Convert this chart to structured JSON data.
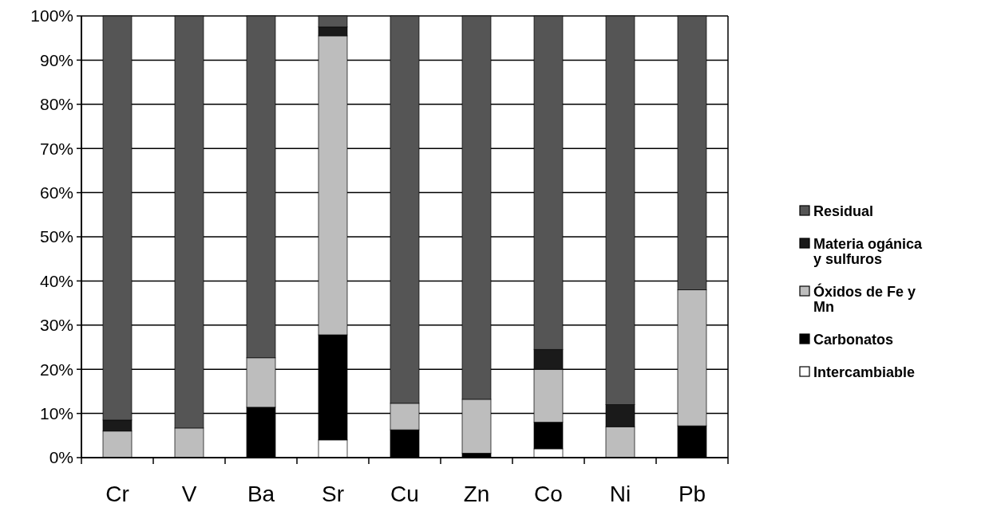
{
  "chart_data": {
    "type": "bar",
    "stacked": true,
    "categories": [
      "Cr",
      "V",
      "Ba",
      "Sr",
      "Cu",
      "Zn",
      "Co",
      "Ni",
      "Pb"
    ],
    "series": [
      {
        "name": "Intercambiable",
        "color": "#ffffff",
        "values": [
          null,
          0,
          0,
          4,
          0,
          0,
          2,
          0,
          0
        ]
      },
      {
        "name": "Carbonatos",
        "color": "#000000",
        "values": [
          0,
          0,
          11.4,
          23.8,
          6.3,
          1,
          6,
          null,
          7.2
        ]
      },
      {
        "name": "Óxidos de Fe y Mn",
        "color": "#bdbdbd",
        "values": [
          6,
          6.7,
          11.2,
          67.7,
          6,
          12.2,
          12,
          7,
          30.8
        ]
      },
      {
        "name": "Materia ogánica y sulfuros",
        "color": "#1a1a1a",
        "values": [
          2.5,
          0,
          0,
          2,
          0,
          0,
          4.5,
          5,
          0
        ]
      },
      {
        "name": "Residual",
        "color": "#555555",
        "values": [
          91.5,
          93.3,
          77.4,
          2.5,
          87.7,
          86.8,
          75.5,
          88,
          62
        ]
      }
    ],
    "ylim": [
      0,
      100
    ],
    "yticks": [
      {
        "value": 0,
        "label": "0%"
      },
      {
        "value": 10,
        "label": "10%"
      },
      {
        "value": 20,
        "label": "20%"
      },
      {
        "value": 30,
        "label": "30%"
      },
      {
        "value": 40,
        "label": "40%"
      },
      {
        "value": 50,
        "label": "50%"
      },
      {
        "value": 60,
        "label": "60%"
      },
      {
        "value": 70,
        "label": "70%"
      },
      {
        "value": 80,
        "label": "80%"
      },
      {
        "value": 90,
        "label": "90%"
      },
      {
        "value": 100,
        "label": "100%"
      }
    ],
    "grid": "y",
    "legend": "right"
  }
}
